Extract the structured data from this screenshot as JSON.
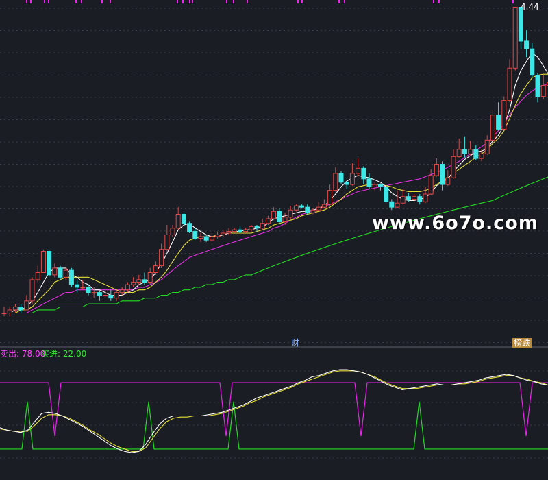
{
  "chart_data": [
    {
      "type": "candlestick",
      "title": "",
      "y_max_label": "4.44",
      "markers": [
        "财",
        "榜跌"
      ],
      "colors": {
        "up": "#e04848",
        "down": "#3ee6e6",
        "ma5": "#ffffff",
        "ma10": "#e8e03a",
        "ma20": "#e030e0",
        "ma60": "#22dd22"
      },
      "candles": [
        [
          0.4,
          0.4,
          0.39,
          0.42
        ],
        [
          0.4,
          0.41,
          0.39,
          0.42
        ],
        [
          0.41,
          0.42,
          0.4,
          0.43
        ],
        [
          0.42,
          0.41,
          0.4,
          0.43
        ],
        [
          0.41,
          0.44,
          0.41,
          0.46
        ],
        [
          0.44,
          0.52,
          0.43,
          0.53
        ],
        [
          0.52,
          0.55,
          0.51,
          0.58
        ],
        [
          0.55,
          0.65,
          0.55,
          0.66
        ],
        [
          0.65,
          0.54,
          0.53,
          0.66
        ],
        [
          0.54,
          0.57,
          0.53,
          0.59
        ],
        [
          0.57,
          0.53,
          0.52,
          0.58
        ],
        [
          0.53,
          0.56,
          0.52,
          0.57
        ],
        [
          0.56,
          0.5,
          0.49,
          0.57
        ],
        [
          0.5,
          0.49,
          0.47,
          0.52
        ],
        [
          0.49,
          0.49,
          0.48,
          0.52
        ],
        [
          0.49,
          0.47,
          0.46,
          0.5
        ],
        [
          0.47,
          0.47,
          0.45,
          0.49
        ],
        [
          0.47,
          0.46,
          0.44,
          0.48
        ],
        [
          0.46,
          0.46,
          0.45,
          0.48
        ],
        [
          0.46,
          0.45,
          0.44,
          0.48
        ],
        [
          0.45,
          0.47,
          0.44,
          0.48
        ],
        [
          0.47,
          0.48,
          0.46,
          0.49
        ],
        [
          0.48,
          0.5,
          0.47,
          0.51
        ],
        [
          0.5,
          0.51,
          0.49,
          0.53
        ],
        [
          0.51,
          0.52,
          0.5,
          0.54
        ],
        [
          0.52,
          0.51,
          0.5,
          0.55
        ],
        [
          0.51,
          0.55,
          0.5,
          0.57
        ],
        [
          0.55,
          0.58,
          0.54,
          0.6
        ],
        [
          0.58,
          0.66,
          0.57,
          0.69
        ],
        [
          0.66,
          0.74,
          0.65,
          0.8
        ],
        [
          0.74,
          0.78,
          0.73,
          0.8
        ],
        [
          0.78,
          0.87,
          0.77,
          0.92
        ],
        [
          0.87,
          0.81,
          0.8,
          0.88
        ],
        [
          0.81,
          0.76,
          0.75,
          0.82
        ],
        [
          0.76,
          0.72,
          0.71,
          0.78
        ],
        [
          0.72,
          0.73,
          0.7,
          0.75
        ],
        [
          0.73,
          0.71,
          0.7,
          0.74
        ],
        [
          0.71,
          0.73,
          0.7,
          0.75
        ],
        [
          0.73,
          0.74,
          0.72,
          0.76
        ],
        [
          0.74,
          0.75,
          0.73,
          0.77
        ],
        [
          0.75,
          0.76,
          0.74,
          0.78
        ],
        [
          0.76,
          0.77,
          0.75,
          0.78
        ],
        [
          0.77,
          0.76,
          0.75,
          0.79
        ],
        [
          0.76,
          0.77,
          0.75,
          0.78
        ],
        [
          0.77,
          0.79,
          0.76,
          0.8
        ],
        [
          0.79,
          0.78,
          0.76,
          0.8
        ],
        [
          0.78,
          0.81,
          0.77,
          0.84
        ],
        [
          0.81,
          0.84,
          0.8,
          0.86
        ],
        [
          0.84,
          0.89,
          0.83,
          0.92
        ],
        [
          0.89,
          0.82,
          0.81,
          0.91
        ],
        [
          0.82,
          0.85,
          0.8,
          0.88
        ],
        [
          0.85,
          0.9,
          0.84,
          0.93
        ],
        [
          0.9,
          0.93,
          0.89,
          0.94
        ],
        [
          0.93,
          0.92,
          0.91,
          0.94
        ],
        [
          0.92,
          0.88,
          0.87,
          0.94
        ],
        [
          0.88,
          0.9,
          0.87,
          0.91
        ],
        [
          0.9,
          0.92,
          0.89,
          0.96
        ],
        [
          0.92,
          0.94,
          0.91,
          0.98
        ],
        [
          0.94,
          1.05,
          0.93,
          1.1
        ],
        [
          1.05,
          1.2,
          1.04,
          1.26
        ],
        [
          1.2,
          1.12,
          1.1,
          1.22
        ],
        [
          1.12,
          1.1,
          1.06,
          1.13
        ],
        [
          1.1,
          1.2,
          1.09,
          1.3
        ],
        [
          1.2,
          1.25,
          1.18,
          1.35
        ],
        [
          1.25,
          1.15,
          1.1,
          1.27
        ],
        [
          1.15,
          1.08,
          1.06,
          1.2
        ],
        [
          1.08,
          1.1,
          1.05,
          1.12
        ],
        [
          1.1,
          1.08,
          1.05,
          1.11
        ],
        [
          1.08,
          0.96,
          0.95,
          1.09
        ],
        [
          0.96,
          0.92,
          0.9,
          0.98
        ],
        [
          0.92,
          0.95,
          0.91,
          1.05
        ],
        [
          0.95,
          1.0,
          0.94,
          1.06
        ],
        [
          1.0,
          0.98,
          0.96,
          1.03
        ],
        [
          0.98,
          1.0,
          0.97,
          1.02
        ],
        [
          1.0,
          0.96,
          0.94,
          1.02
        ],
        [
          0.96,
          1.02,
          0.95,
          1.08
        ],
        [
          1.02,
          1.18,
          1.01,
          1.24
        ],
        [
          1.18,
          1.29,
          1.17,
          1.35
        ],
        [
          1.29,
          1.1,
          1.05,
          1.32
        ],
        [
          1.1,
          1.16,
          1.09,
          1.23
        ],
        [
          1.16,
          1.37,
          1.15,
          1.45
        ],
        [
          1.37,
          1.45,
          1.36,
          1.58
        ],
        [
          1.45,
          1.4,
          1.36,
          1.6
        ],
        [
          1.4,
          1.45,
          1.38,
          1.55
        ],
        [
          1.45,
          1.35,
          1.33,
          1.5
        ],
        [
          1.35,
          1.4,
          1.32,
          1.45
        ],
        [
          1.4,
          1.56,
          1.39,
          1.62
        ],
        [
          1.56,
          1.9,
          1.55,
          1.98
        ],
        [
          1.9,
          1.7,
          1.68,
          2.1
        ],
        [
          1.7,
          2.13,
          1.69,
          2.2
        ],
        [
          2.13,
          2.75,
          2.1,
          2.95
        ],
        [
          2.75,
          4.44,
          2.7,
          4.44
        ],
        [
          4.44,
          3.4,
          3.2,
          4.44
        ],
        [
          3.4,
          3.2,
          3.0,
          3.7
        ],
        [
          3.2,
          2.6,
          2.55,
          3.35
        ],
        [
          2.6,
          2.2,
          2.1,
          2.65
        ],
        [
          2.2,
          2.4,
          2.15,
          2.6
        ],
        [
          2.4,
          2.45,
          2.3,
          2.7
        ]
      ],
      "ma5": [
        0.4,
        0.4,
        0.41,
        0.41,
        0.42,
        0.44,
        0.47,
        0.51,
        0.55,
        0.57,
        0.57,
        0.57,
        0.54,
        0.53,
        0.51,
        0.5,
        0.48,
        0.48,
        0.47,
        0.46,
        0.46,
        0.46,
        0.47,
        0.48,
        0.5,
        0.51,
        0.52,
        0.55,
        0.59,
        0.64,
        0.7,
        0.77,
        0.8,
        0.81,
        0.78,
        0.76,
        0.74,
        0.73,
        0.73,
        0.74,
        0.75,
        0.76,
        0.76,
        0.77,
        0.77,
        0.78,
        0.79,
        0.81,
        0.84,
        0.85,
        0.86,
        0.87,
        0.88,
        0.89,
        0.89,
        0.9,
        0.91,
        0.93,
        0.97,
        1.02,
        1.08,
        1.13,
        1.16,
        1.18,
        1.17,
        1.16,
        1.14,
        1.12,
        1.08,
        1.03,
        1.0,
        0.98,
        0.97,
        0.97,
        0.98,
        0.99,
        1.03,
        1.09,
        1.12,
        1.15,
        1.22,
        1.28,
        1.34,
        1.38,
        1.42,
        1.43,
        1.46,
        1.55,
        1.62,
        1.75,
        1.98,
        2.4,
        2.7,
        2.9,
        3.1,
        3.0,
        2.8,
        2.6
      ],
      "ma10": [
        0.4,
        0.4,
        0.4,
        0.41,
        0.41,
        0.42,
        0.44,
        0.46,
        0.48,
        0.51,
        0.52,
        0.53,
        0.53,
        0.53,
        0.53,
        0.53,
        0.52,
        0.51,
        0.5,
        0.49,
        0.48,
        0.47,
        0.47,
        0.47,
        0.48,
        0.48,
        0.49,
        0.51,
        0.53,
        0.56,
        0.6,
        0.64,
        0.68,
        0.71,
        0.72,
        0.73,
        0.73,
        0.73,
        0.74,
        0.74,
        0.75,
        0.75,
        0.75,
        0.75,
        0.75,
        0.76,
        0.77,
        0.78,
        0.8,
        0.81,
        0.82,
        0.83,
        0.84,
        0.86,
        0.87,
        0.88,
        0.89,
        0.9,
        0.92,
        0.95,
        0.98,
        1.02,
        1.05,
        1.08,
        1.09,
        1.1,
        1.1,
        1.1,
        1.09,
        1.08,
        1.06,
        1.05,
        1.04,
        1.04,
        1.04,
        1.05,
        1.07,
        1.1,
        1.13,
        1.16,
        1.2,
        1.24,
        1.28,
        1.32,
        1.36,
        1.4,
        1.45,
        1.52,
        1.58,
        1.68,
        1.85,
        2.05,
        2.25,
        2.4,
        2.55,
        2.6,
        2.62,
        2.62
      ],
      "ma20": [
        0.4,
        0.4,
        0.4,
        0.4,
        0.4,
        0.41,
        0.42,
        0.43,
        0.44,
        0.45,
        0.46,
        0.47,
        0.47,
        0.48,
        0.48,
        0.48,
        0.48,
        0.48,
        0.48,
        0.48,
        0.48,
        0.48,
        0.48,
        0.48,
        0.49,
        0.49,
        0.5,
        0.51,
        0.52,
        0.54,
        0.56,
        0.58,
        0.6,
        0.62,
        0.63,
        0.64,
        0.65,
        0.66,
        0.67,
        0.68,
        0.69,
        0.7,
        0.71,
        0.72,
        0.73,
        0.74,
        0.75,
        0.76,
        0.78,
        0.79,
        0.81,
        0.83,
        0.85,
        0.87,
        0.88,
        0.9,
        0.91,
        0.93,
        0.94,
        0.96,
        0.98,
        1.0,
        1.02,
        1.04,
        1.05,
        1.06,
        1.07,
        1.08,
        1.09,
        1.1,
        1.11,
        1.12,
        1.13,
        1.14,
        1.15,
        1.17,
        1.19,
        1.21,
        1.23,
        1.26,
        1.29,
        1.32,
        1.36,
        1.4,
        1.44,
        1.48,
        1.53,
        1.6,
        1.68,
        1.78,
        1.9,
        2.02,
        2.12,
        2.22,
        2.3,
        2.36,
        2.4,
        2.44
      ],
      "ma60": [
        0.4,
        0.4,
        0.4,
        0.4,
        0.4,
        0.4,
        0.41,
        0.41,
        0.41,
        0.41,
        0.42,
        0.42,
        0.42,
        0.42,
        0.42,
        0.43,
        0.43,
        0.43,
        0.43,
        0.43,
        0.43,
        0.44,
        0.44,
        0.44,
        0.44,
        0.45,
        0.45,
        0.45,
        0.46,
        0.46,
        0.47,
        0.47,
        0.48,
        0.48,
        0.49,
        0.49,
        0.5,
        0.5,
        0.51,
        0.51,
        0.52,
        0.52,
        0.53,
        0.54,
        0.54,
        0.55,
        0.56,
        0.57,
        0.58,
        0.59,
        0.6,
        0.61,
        0.62,
        0.63,
        0.64,
        0.65,
        0.66,
        0.67,
        0.68,
        0.69,
        0.7,
        0.71,
        0.72,
        0.73,
        0.74,
        0.75,
        0.76,
        0.77,
        0.78,
        0.79,
        0.8,
        0.81,
        0.82,
        0.83,
        0.84,
        0.85,
        0.86,
        0.87,
        0.88,
        0.89,
        0.9,
        0.91,
        0.92,
        0.93,
        0.94,
        0.95,
        0.96,
        0.97,
        0.99,
        1.01,
        1.03,
        1.05,
        1.07,
        1.09,
        1.11,
        1.13,
        1.15,
        1.17
      ]
    },
    {
      "type": "line",
      "title": "",
      "legend": {
        "sell_label": "卖出: 78.00",
        "buy_label": "买进: 22.00"
      },
      "levels": {
        "sell": 78,
        "buy": 22
      },
      "ylim": [
        0,
        100
      ],
      "colors": {
        "sell": "#ee22ee",
        "buy": "#22dd22",
        "k": "#ffffff",
        "d": "#e8e03a"
      },
      "k": [
        40,
        38,
        37,
        36,
        38,
        45,
        52,
        53,
        52,
        50,
        47,
        44,
        41,
        37,
        33,
        29,
        25,
        22,
        20,
        19,
        20,
        26,
        35,
        43,
        48,
        50,
        50,
        50,
        50,
        50,
        51,
        52,
        53,
        55,
        57,
        59,
        62,
        65,
        67,
        69,
        71,
        73,
        75,
        78,
        80,
        83,
        84,
        86,
        88,
        89,
        89,
        88,
        87,
        85,
        82,
        79,
        76,
        74,
        72,
        73,
        74,
        75,
        76,
        77,
        76,
        76,
        77,
        78,
        79,
        80,
        82,
        83,
        84,
        85,
        84,
        82,
        80,
        79,
        77,
        76
      ],
      "d": [
        39,
        38,
        37,
        37,
        37,
        42,
        48,
        51,
        51,
        50,
        48,
        45,
        42,
        38,
        35,
        31,
        27,
        24,
        22,
        20,
        20,
        23,
        31,
        39,
        45,
        48,
        49,
        49,
        50,
        50,
        50,
        51,
        52,
        54,
        56,
        58,
        61,
        63,
        66,
        68,
        70,
        72,
        74,
        77,
        79,
        81,
        83,
        85,
        87,
        88,
        88,
        88,
        87,
        85,
        83,
        80,
        77,
        75,
        73,
        73,
        73,
        74,
        75,
        76,
        76,
        76,
        77,
        77,
        78,
        79,
        81,
        82,
        83,
        84,
        84,
        82,
        81,
        79,
        78,
        76
      ],
      "sell_dips": [
        11,
        28,
        64,
        73
      ],
      "buy_spikes": [
        5,
        24,
        41,
        73
      ]
    }
  ],
  "watermark": "www.6o7o.com"
}
